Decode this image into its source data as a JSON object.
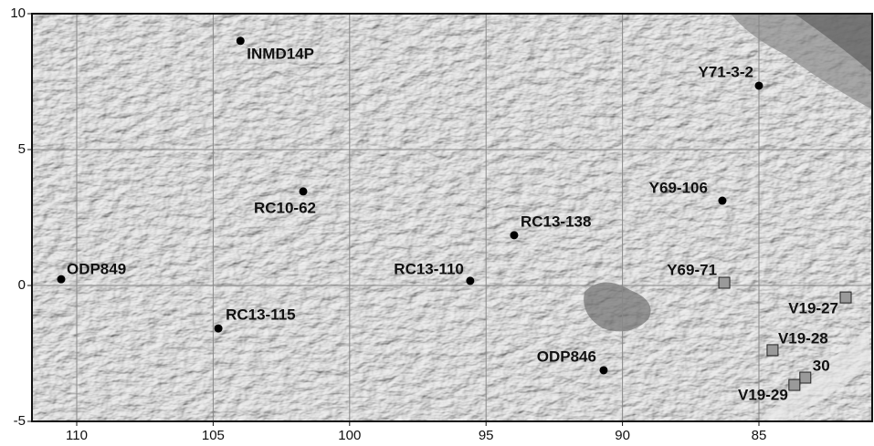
{
  "map": {
    "xlim": [
      111.64,
      80.85
    ],
    "ylim": [
      -5,
      10
    ],
    "xticks": [
      110,
      105,
      100,
      95,
      90,
      85
    ],
    "yticks": [
      -5,
      0,
      5,
      10
    ],
    "grid": true,
    "sites": [
      {
        "name": "INMD14P",
        "lon": 104.0,
        "lat": 9.0,
        "shape": "circle"
      },
      {
        "name": "Y71-3-2",
        "lon": 85.0,
        "lat": 7.35,
        "shape": "circle"
      },
      {
        "name": "RC10-62",
        "lon": 101.7,
        "lat": 3.46,
        "shape": "circle"
      },
      {
        "name": "Y69-106",
        "lon": 86.34,
        "lat": 3.12,
        "shape": "circle"
      },
      {
        "name": "RC13-138",
        "lon": 93.97,
        "lat": 1.85,
        "shape": "circle"
      },
      {
        "name": "ODP849",
        "lon": 110.57,
        "lat": 0.23,
        "shape": "circle"
      },
      {
        "name": "RC13-110",
        "lon": 95.58,
        "lat": 0.17,
        "shape": "circle"
      },
      {
        "name": "Y69-71",
        "lon": 86.27,
        "lat": 0.1,
        "shape": "square"
      },
      {
        "name": "RC13-115",
        "lon": 104.81,
        "lat": -1.58,
        "shape": "circle"
      },
      {
        "name": "V19-27",
        "lon": 81.82,
        "lat": -0.44,
        "shape": "square"
      },
      {
        "name": "V19-28",
        "lon": 84.5,
        "lat": -2.38,
        "shape": "square"
      },
      {
        "name": "ODP846",
        "lon": 90.69,
        "lat": -3.12,
        "shape": "circle"
      },
      {
        "name": "30",
        "lon": 83.3,
        "lat": -3.39,
        "shape": "square"
      },
      {
        "name": "V19-29",
        "lon": 83.7,
        "lat": -3.66,
        "shape": "square"
      }
    ]
  }
}
